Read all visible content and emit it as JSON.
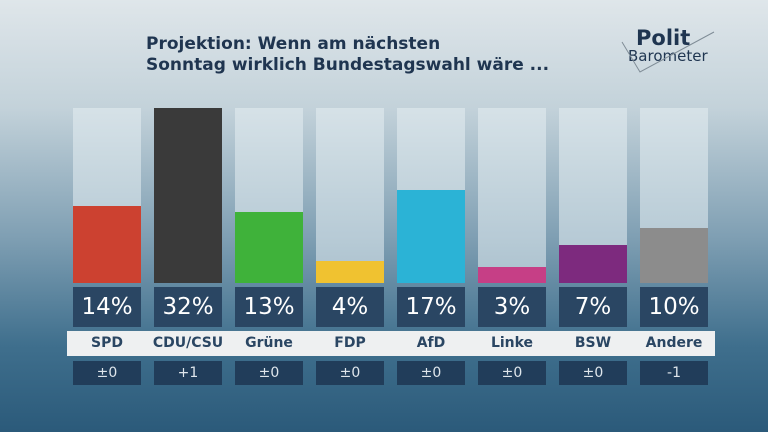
{
  "chart_data": {
    "type": "bar",
    "title": "Projektion: Wenn am nächsten Sonntag wirklich Bundestagswahl wäre ...",
    "title_lines": [
      "Projektion: Wenn am nächsten",
      "Sonntag wirklich Bundestagswahl wäre ..."
    ],
    "categories": [
      "SPD",
      "CDU/CSU",
      "Grüne",
      "FDP",
      "AfD",
      "Linke",
      "BSW",
      "Andere"
    ],
    "values": [
      14,
      32,
      13,
      4,
      17,
      3,
      7,
      10
    ],
    "value_labels": [
      "14%",
      "32%",
      "13%",
      "4%",
      "17%",
      "3%",
      "7%",
      "10%"
    ],
    "changes": [
      "±0",
      "+1",
      "±0",
      "±0",
      "±0",
      "±0",
      "±0",
      "-1"
    ],
    "colors": [
      "#cc4130",
      "#3a3a3a",
      "#3fb23a",
      "#f0c230",
      "#2bb3d6",
      "#c63f86",
      "#7d2a7e",
      "#8c8c8c"
    ],
    "ylim": [
      0,
      32
    ],
    "grid": false,
    "legend": "none"
  },
  "logo": {
    "line1": "Polit",
    "line2": "Barometer"
  }
}
